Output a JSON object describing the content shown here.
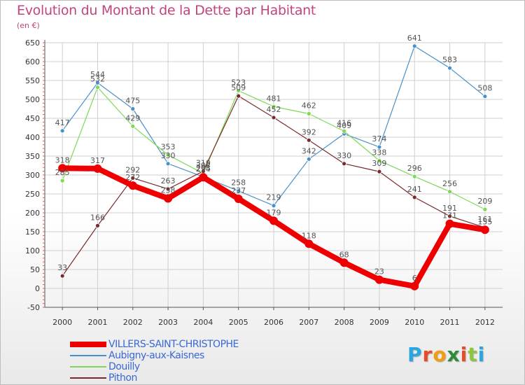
{
  "header": {
    "title": "Evolution du Montant de la Dette par Habitant",
    "unit": "(en €)"
  },
  "logo": {
    "letters": [
      "P",
      "r",
      "o",
      "x",
      "i",
      "t",
      "i"
    ],
    "colors": [
      "#2aa6e0",
      "#e84b2a",
      "#f39c12",
      "#2e8b3a",
      "#e84b2a",
      "#8cc63f",
      "#2aa6e0"
    ]
  },
  "colors": {
    "grid": "#cfcfcf",
    "axis": "#555555",
    "tick_label": "#333333",
    "data_label": "#555555"
  },
  "chart_data": {
    "type": "line",
    "x": [
      2000,
      2001,
      2002,
      2003,
      2004,
      2005,
      2006,
      2007,
      2008,
      2009,
      2010,
      2011,
      2012
    ],
    "ylim": [
      -50,
      650
    ],
    "yticks": [
      -50,
      0,
      50,
      100,
      150,
      200,
      250,
      300,
      350,
      400,
      450,
      500,
      550,
      600,
      650
    ],
    "grid": true,
    "legend_position": "bottom-left",
    "series": [
      {
        "name": "VILLERS-SAINT-CHRISTOPHE",
        "color": "#ee0000",
        "width": 8,
        "values": [
          318,
          317,
          272,
          238,
          294,
          237,
          179,
          118,
          68,
          23,
          6,
          171,
          155
        ],
        "labels": [
          "318",
          "317",
          "272",
          "238",
          "294",
          "237",
          "179",
          "118",
          "68",
          "23",
          "6",
          "171",
          "155"
        ]
      },
      {
        "name": "Aubigny-aux-Kaisnes",
        "color": "#4a90c8",
        "width": 1.2,
        "values": [
          417,
          544,
          475,
          330,
          295,
          258,
          219,
          342,
          409,
          374,
          641,
          583,
          508
        ],
        "labels": [
          "417",
          "544",
          "475",
          "330",
          "295",
          "258",
          "219",
          "342",
          "409",
          "374",
          "641",
          "583",
          "508"
        ]
      },
      {
        "name": "Douilly",
        "color": "#7ed957",
        "width": 1.2,
        "values": [
          285,
          532,
          429,
          353,
          304,
          523,
          481,
          462,
          416,
          338,
          296,
          256,
          209
        ],
        "labels": [
          "285",
          "532",
          "429",
          "353",
          "304",
          "523",
          "481",
          "462",
          "416",
          "338",
          "296",
          "256",
          "209"
        ]
      },
      {
        "name": "Pithon",
        "color": "#7a2a2a",
        "width": 1.2,
        "values": [
          33,
          166,
          292,
          263,
          310,
          509,
          452,
          392,
          330,
          309,
          241,
          191,
          161
        ],
        "labels": [
          "33",
          "166",
          "292",
          "263",
          "310",
          "509",
          "452",
          "392",
          "330",
          "309",
          "241",
          "191",
          "161"
        ]
      }
    ]
  }
}
